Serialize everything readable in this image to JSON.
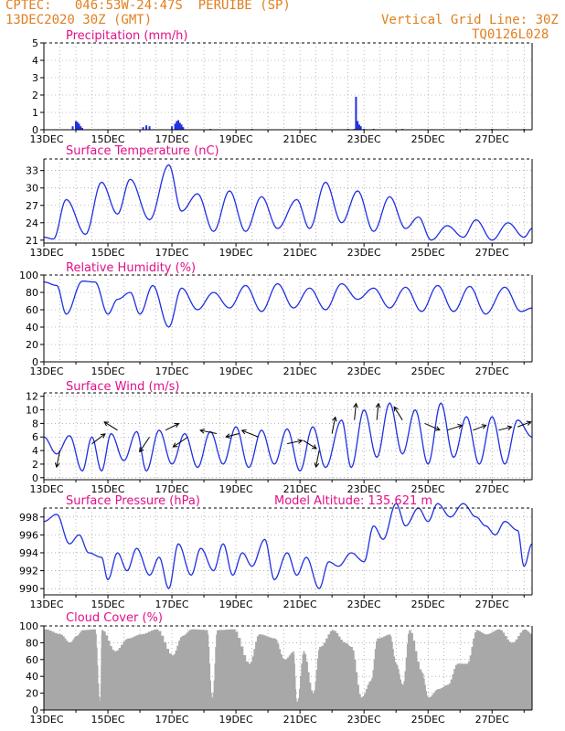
{
  "header": {
    "line1": "CPTEC:   046:53W-24:47S  PERUIBE (SP)",
    "line2": "13DEC2020 30Z (GMT)",
    "grid_note": "Vertical Grid Line: 30Z",
    "code": "TQ0126L028"
  },
  "colors": {
    "header": "#e08020",
    "title": "#e0108a",
    "series": "#2030e0",
    "cloud": "#a8a8a8",
    "axis": "#000000"
  },
  "chart_data": [
    {
      "type": "bar",
      "title": "Precipitation (mm/h)",
      "ylim": [
        0,
        5
      ],
      "yticks": [
        0,
        1,
        2,
        3,
        4,
        5
      ],
      "xticks": [
        "13DEC",
        "15DEC",
        "17DEC",
        "19DEC",
        "21DEC",
        "23DEC",
        "25DEC",
        "27DEC"
      ],
      "x_days": [
        0,
        15.25
      ],
      "bars": [
        [
          0.9,
          0.2
        ],
        [
          1.0,
          0.5
        ],
        [
          1.05,
          0.45
        ],
        [
          1.1,
          0.35
        ],
        [
          1.15,
          0.2
        ],
        [
          1.2,
          0.1
        ],
        [
          3.1,
          0.15
        ],
        [
          3.2,
          0.25
        ],
        [
          3.3,
          0.2
        ],
        [
          4.0,
          0.2
        ],
        [
          4.1,
          0.35
        ],
        [
          4.15,
          0.5
        ],
        [
          4.2,
          0.55
        ],
        [
          4.25,
          0.4
        ],
        [
          4.3,
          0.3
        ],
        [
          4.35,
          0.15
        ],
        [
          5.2,
          0.05
        ],
        [
          6.5,
          0.05
        ],
        [
          8.5,
          0.05
        ],
        [
          9.5,
          0.05
        ],
        [
          9.7,
          0.05
        ],
        [
          10.0,
          0.05
        ],
        [
          9.75,
          1.9
        ],
        [
          9.8,
          0.5
        ],
        [
          9.85,
          0.3
        ],
        [
          9.9,
          0.2
        ],
        [
          10.3,
          0.05
        ],
        [
          11.2,
          0.05
        ],
        [
          13.2,
          0.05
        ],
        [
          14.0,
          0.05
        ],
        [
          15.0,
          0.05
        ]
      ]
    },
    {
      "type": "line",
      "title": "Surface Temperature (nC)",
      "ylim": [
        20.5,
        35
      ],
      "yticks": [
        21,
        24,
        27,
        30,
        33
      ],
      "xticks": [
        "13DEC",
        "15DEC",
        "17DEC",
        "19DEC",
        "21DEC",
        "23DEC",
        "25DEC",
        "27DEC"
      ],
      "x_days": [
        0,
        15.25
      ],
      "minmax": [
        [
          0,
          21.5
        ],
        [
          0.3,
          21.2
        ],
        [
          0.7,
          28
        ],
        [
          1.3,
          22
        ],
        [
          1.8,
          31
        ],
        [
          2.3,
          25.5
        ],
        [
          2.7,
          31.5
        ],
        [
          3.3,
          24.5
        ],
        [
          3.9,
          34
        ],
        [
          4.3,
          26
        ],
        [
          4.8,
          29
        ],
        [
          5.3,
          22.5
        ],
        [
          5.8,
          29.5
        ],
        [
          6.3,
          22.5
        ],
        [
          6.8,
          28.5
        ],
        [
          7.3,
          23
        ],
        [
          7.9,
          28
        ],
        [
          8.3,
          23
        ],
        [
          8.8,
          31
        ],
        [
          9.3,
          24
        ],
        [
          9.8,
          29.5
        ],
        [
          10.3,
          22.5
        ],
        [
          10.8,
          28.5
        ],
        [
          11.3,
          23
        ],
        [
          11.7,
          25
        ],
        [
          12.1,
          21
        ],
        [
          12.6,
          23.5
        ],
        [
          13.1,
          21.5
        ],
        [
          13.5,
          24.5
        ],
        [
          14.0,
          21
        ],
        [
          14.5,
          24
        ],
        [
          15.0,
          21.5
        ],
        [
          15.25,
          23
        ]
      ]
    },
    {
      "type": "line",
      "title": "Relative Humidity (%)",
      "ylim": [
        0,
        100
      ],
      "yticks": [
        0,
        20,
        40,
        60,
        80,
        100
      ],
      "xticks": [
        "13DEC",
        "15DEC",
        "17DEC",
        "19DEC",
        "21DEC",
        "23DEC",
        "25DEC",
        "27DEC"
      ],
      "x_days": [
        0,
        15.25
      ],
      "minmax": [
        [
          0,
          92
        ],
        [
          0.4,
          88
        ],
        [
          0.7,
          55
        ],
        [
          1.2,
          93
        ],
        [
          1.6,
          92
        ],
        [
          2.0,
          55
        ],
        [
          2.3,
          72
        ],
        [
          2.7,
          80
        ],
        [
          3.0,
          55
        ],
        [
          3.4,
          88
        ],
        [
          3.9,
          40
        ],
        [
          4.3,
          85
        ],
        [
          4.8,
          60
        ],
        [
          5.3,
          80
        ],
        [
          5.8,
          62
        ],
        [
          6.3,
          88
        ],
        [
          6.8,
          58
        ],
        [
          7.3,
          90
        ],
        [
          7.8,
          62
        ],
        [
          8.3,
          85
        ],
        [
          8.8,
          60
        ],
        [
          9.3,
          90
        ],
        [
          9.8,
          72
        ],
        [
          10.3,
          85
        ],
        [
          10.8,
          62
        ],
        [
          11.3,
          86
        ],
        [
          11.8,
          58
        ],
        [
          12.3,
          88
        ],
        [
          12.8,
          58
        ],
        [
          13.3,
          87
        ],
        [
          13.8,
          55
        ],
        [
          14.4,
          86
        ],
        [
          14.9,
          58
        ],
        [
          15.25,
          62
        ]
      ]
    },
    {
      "type": "line",
      "title": "Surface Wind (m/s)",
      "ylim": [
        -0.3,
        12.5
      ],
      "yticks": [
        0,
        2,
        4,
        6,
        8,
        10,
        12
      ],
      "xticks": [
        "13DEC",
        "15DEC",
        "17DEC",
        "19DEC",
        "21DEC",
        "23DEC",
        "25DEC",
        "27DEC"
      ],
      "x_days": [
        0,
        15.25
      ],
      "minmax": [
        [
          0,
          6
        ],
        [
          0.4,
          3.5
        ],
        [
          0.8,
          6.2
        ],
        [
          1.2,
          1
        ],
        [
          1.5,
          6
        ],
        [
          1.8,
          1
        ],
        [
          2.1,
          6.5
        ],
        [
          2.5,
          2.5
        ],
        [
          2.9,
          6.8
        ],
        [
          3.2,
          1
        ],
        [
          3.6,
          7
        ],
        [
          4.0,
          2
        ],
        [
          4.4,
          6.5
        ],
        [
          4.8,
          1.5
        ],
        [
          5.2,
          6.8
        ],
        [
          5.6,
          2
        ],
        [
          6.0,
          7.5
        ],
        [
          6.4,
          1.5
        ],
        [
          6.8,
          7
        ],
        [
          7.2,
          2
        ],
        [
          7.6,
          7.2
        ],
        [
          8.0,
          1
        ],
        [
          8.4,
          7.5
        ],
        [
          8.8,
          1.5
        ],
        [
          9.3,
          8.5
        ],
        [
          9.6,
          1.5
        ],
        [
          10.0,
          10
        ],
        [
          10.4,
          3
        ],
        [
          10.8,
          11
        ],
        [
          11.2,
          3.5
        ],
        [
          11.6,
          10
        ],
        [
          12.0,
          2
        ],
        [
          12.4,
          11
        ],
        [
          12.8,
          3
        ],
        [
          13.2,
          9
        ],
        [
          13.6,
          2
        ],
        [
          14.0,
          9
        ],
        [
          14.4,
          2
        ],
        [
          14.8,
          8.5
        ],
        [
          15.25,
          6
        ]
      ],
      "vectors": [
        [
          0.5,
          4,
          -0.2,
          -1
        ],
        [
          1.5,
          5,
          0.8,
          0.6
        ],
        [
          2.3,
          7,
          -0.8,
          0.5
        ],
        [
          3.3,
          6,
          -0.6,
          -0.9
        ],
        [
          3.8,
          7,
          0.8,
          0.4
        ],
        [
          4.5,
          6,
          -0.9,
          -0.6
        ],
        [
          5.4,
          6.5,
          -1,
          0.2
        ],
        [
          6.1,
          6.5,
          -0.8,
          -0.2
        ],
        [
          6.7,
          6,
          -1,
          0.4
        ],
        [
          7.6,
          5,
          0.9,
          0.2
        ],
        [
          8.1,
          5.5,
          0.8,
          -0.5
        ],
        [
          8.6,
          4,
          -0.2,
          -1
        ],
        [
          9.0,
          6.5,
          0.2,
          1
        ],
        [
          9.7,
          8.5,
          0.1,
          1
        ],
        [
          10.4,
          8.5,
          0.1,
          1
        ],
        [
          11.2,
          8.5,
          -0.5,
          0.8
        ],
        [
          11.9,
          8,
          0.9,
          -0.4
        ],
        [
          12.6,
          7,
          0.9,
          0.3
        ],
        [
          13.4,
          7,
          0.8,
          0.3
        ],
        [
          14.2,
          7,
          0.8,
          0.2
        ],
        [
          14.8,
          7.5,
          0.8,
          0.3
        ]
      ]
    },
    {
      "type": "line",
      "title": "Surface Pressure (hPa)",
      "annotation": "Model Altitude: 135.621 m",
      "ylim": [
        989.3,
        999
      ],
      "yticks": [
        990,
        992,
        994,
        996,
        998
      ],
      "xticks": [
        "13DEC",
        "15DEC",
        "17DEC",
        "19DEC",
        "21DEC",
        "23DEC",
        "25DEC",
        "27DEC"
      ],
      "x_days": [
        0,
        15.25
      ],
      "minmax": [
        [
          0,
          997.5
        ],
        [
          0.4,
          998.3
        ],
        [
          0.8,
          995
        ],
        [
          1.1,
          996
        ],
        [
          1.4,
          994
        ],
        [
          1.8,
          993.5
        ],
        [
          2.0,
          991
        ],
        [
          2.3,
          994
        ],
        [
          2.6,
          992
        ],
        [
          2.9,
          994.5
        ],
        [
          3.3,
          991.5
        ],
        [
          3.6,
          993.5
        ],
        [
          3.9,
          990
        ],
        [
          4.2,
          995
        ],
        [
          4.6,
          991.5
        ],
        [
          4.9,
          994.5
        ],
        [
          5.3,
          992
        ],
        [
          5.6,
          995
        ],
        [
          5.9,
          991.5
        ],
        [
          6.2,
          994
        ],
        [
          6.5,
          992.5
        ],
        [
          6.9,
          995.5
        ],
        [
          7.2,
          991
        ],
        [
          7.6,
          994
        ],
        [
          7.9,
          991.5
        ],
        [
          8.2,
          993.5
        ],
        [
          8.6,
          990
        ],
        [
          8.9,
          993
        ],
        [
          9.2,
          992.5
        ],
        [
          9.6,
          994
        ],
        [
          10.0,
          993
        ],
        [
          10.3,
          997
        ],
        [
          10.6,
          995.5
        ],
        [
          11.0,
          999.5
        ],
        [
          11.3,
          997
        ],
        [
          11.7,
          999
        ],
        [
          12.0,
          997.5
        ],
        [
          12.3,
          999.5
        ],
        [
          12.7,
          998
        ],
        [
          13.1,
          999.5
        ],
        [
          13.5,
          998
        ],
        [
          13.8,
          997
        ],
        [
          14.1,
          996
        ],
        [
          14.4,
          997.5
        ],
        [
          14.8,
          996.5
        ],
        [
          15.0,
          992.5
        ],
        [
          15.25,
          995
        ]
      ]
    },
    {
      "type": "area",
      "title": "Cloud Cover (%)",
      "ylim": [
        0,
        100
      ],
      "yticks": [
        0,
        20,
        40,
        60,
        80,
        100
      ],
      "xticks": [
        "13DEC",
        "15DEC",
        "17DEC",
        "19DEC",
        "21DEC",
        "23DEC",
        "25DEC",
        "27DEC"
      ],
      "x_days": [
        0,
        15.25
      ],
      "minmax": [
        [
          0,
          96
        ],
        [
          0.5,
          90
        ],
        [
          0.8,
          80
        ],
        [
          1.0,
          88
        ],
        [
          1.2,
          95
        ],
        [
          1.6,
          96
        ],
        [
          1.75,
          10
        ],
        [
          1.8,
          95
        ],
        [
          2.2,
          70
        ],
        [
          2.6,
          85
        ],
        [
          3.0,
          90
        ],
        [
          3.5,
          96
        ],
        [
          4.0,
          65
        ],
        [
          4.3,
          88
        ],
        [
          4.6,
          96
        ],
        [
          5.1,
          95
        ],
        [
          5.25,
          15
        ],
        [
          5.4,
          95
        ],
        [
          5.9,
          96
        ],
        [
          6.4,
          55
        ],
        [
          6.7,
          90
        ],
        [
          7.2,
          85
        ],
        [
          7.5,
          60
        ],
        [
          7.8,
          70
        ],
        [
          7.9,
          10
        ],
        [
          8.1,
          70
        ],
        [
          8.4,
          20
        ],
        [
          8.6,
          75
        ],
        [
          9.0,
          95
        ],
        [
          9.4,
          80
        ],
        [
          9.6,
          75
        ],
        [
          9.9,
          15
        ],
        [
          10.2,
          35
        ],
        [
          10.4,
          85
        ],
        [
          10.8,
          90
        ],
        [
          11.0,
          55
        ],
        [
          11.2,
          30
        ],
        [
          11.4,
          95
        ],
        [
          11.8,
          45
        ],
        [
          12.0,
          15
        ],
        [
          12.3,
          25
        ],
        [
          12.6,
          30
        ],
        [
          12.9,
          55
        ],
        [
          13.2,
          55
        ],
        [
          13.5,
          95
        ],
        [
          13.8,
          90
        ],
        [
          14.2,
          96
        ],
        [
          14.6,
          80
        ],
        [
          15.0,
          96
        ],
        [
          15.25,
          90
        ]
      ]
    }
  ]
}
